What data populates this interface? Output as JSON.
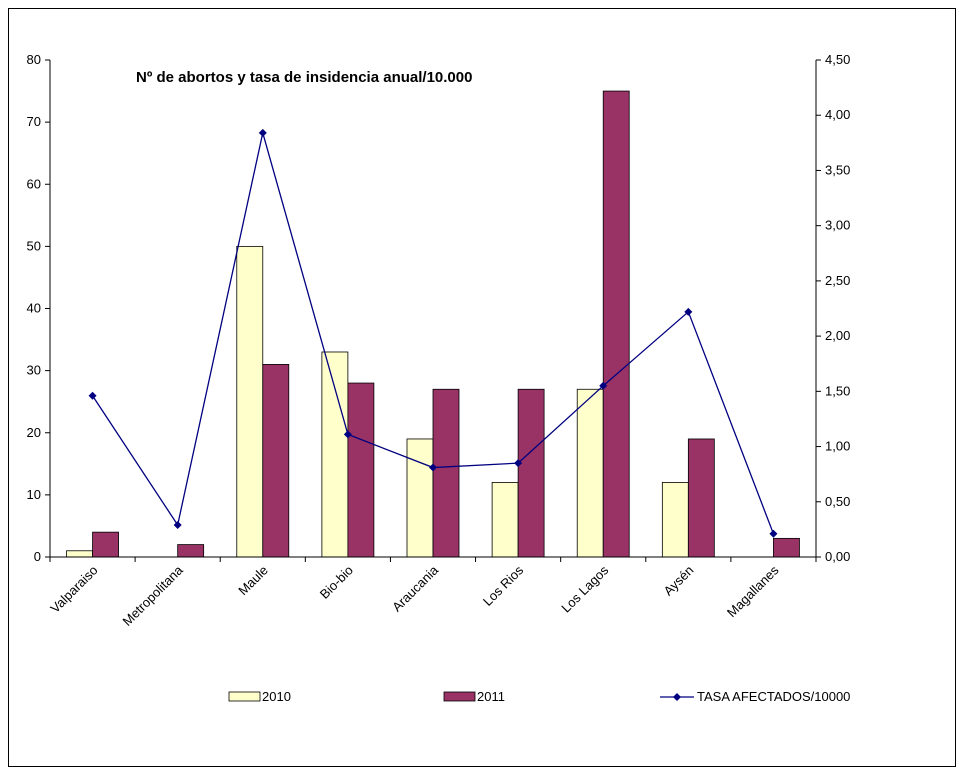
{
  "chart_data": {
    "type": "bar",
    "title": "Nº de abortos y tasa de insidencia anual/10.000",
    "categories": [
      "Valparaiso",
      "Metropolitana",
      "Maule",
      "Bio-bio",
      "Araucania",
      "Los Rios",
      "Los Lagos",
      "Aysén",
      "Magallanes"
    ],
    "series": [
      {
        "name": "2010",
        "type": "bar",
        "axis": "left",
        "color": "#FFFFCC",
        "values": [
          1,
          null,
          50,
          33,
          19,
          12,
          27,
          12,
          null
        ]
      },
      {
        "name": "2011",
        "type": "bar",
        "axis": "left",
        "color": "#993366",
        "values": [
          4,
          2,
          31,
          28,
          27,
          27,
          75,
          19,
          3
        ]
      },
      {
        "name": "TASA AFECTADOS/10000",
        "type": "line",
        "axis": "right",
        "color": "#000080",
        "values": [
          1.46,
          0.29,
          3.84,
          1.11,
          0.81,
          0.85,
          1.55,
          2.22,
          0.21
        ]
      }
    ],
    "y_left": {
      "min": 0,
      "max": 80,
      "ticks": [
        "0",
        "10",
        "20",
        "30",
        "40",
        "50",
        "60",
        "70",
        "80"
      ]
    },
    "y_right": {
      "min": 0,
      "max": 4.5,
      "ticks": [
        "0,00",
        "0,50",
        "1,00",
        "1,50",
        "2,00",
        "2,50",
        "3,00",
        "3,50",
        "4,00",
        "4,50"
      ]
    },
    "legend_position": "bottom",
    "grid": false
  }
}
